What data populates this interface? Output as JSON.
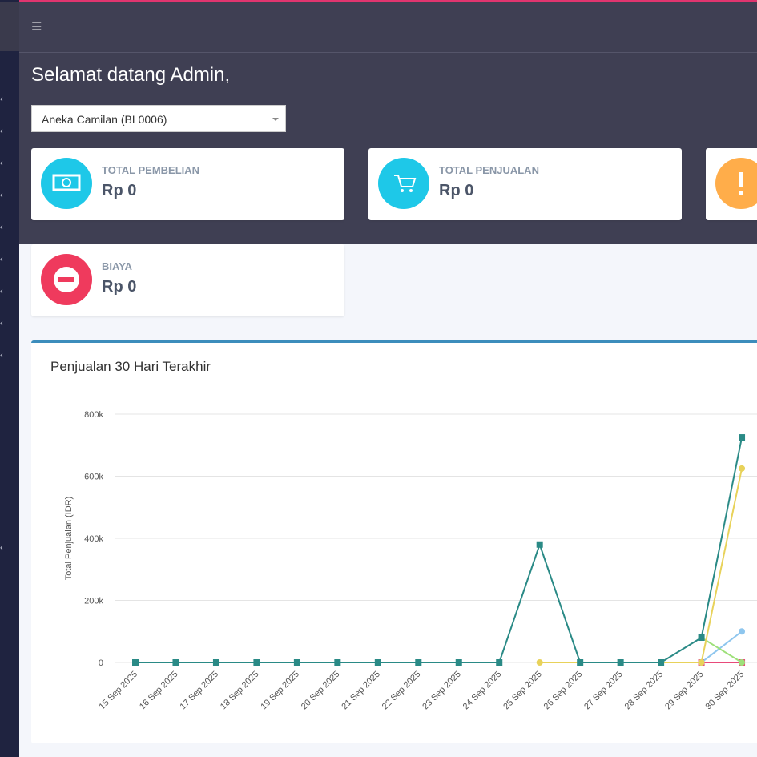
{
  "welcome": "Selamat datang Admin,",
  "store_select": "Aneka Camilan (BL0006)",
  "cards": [
    {
      "label": "TOTAL PEMBELIAN",
      "value": "Rp 0"
    },
    {
      "label": "TOTAL PENJUALAN",
      "value": "Rp 0"
    },
    {
      "label": "BIAYA",
      "value": "Rp 0"
    }
  ],
  "chart_data": {
    "type": "line",
    "title": "Penjualan 30 Hari Terakhir",
    "y_label": "Total Penjualan (IDR)",
    "categories": [
      "15 Sep 2025",
      "16 Sep 2025",
      "17 Sep 2025",
      "18 Sep 2025",
      "19 Sep 2025",
      "20 Sep 2025",
      "21 Sep 2025",
      "22 Sep 2025",
      "23 Sep 2025",
      "24 Sep 2025",
      "25 Sep 2025",
      "26 Sep 2025",
      "27 Sep 2025",
      "28 Sep 2025",
      "29 Sep 2025",
      "30 Sep 2025"
    ],
    "series": [
      {
        "color": "#e84a7a",
        "marker": "square",
        "values": [
          null,
          null,
          null,
          null,
          null,
          null,
          null,
          null,
          null,
          null,
          null,
          null,
          null,
          null,
          0,
          0
        ]
      },
      {
        "color": "#8ec6ee",
        "marker": "circle",
        "values": [
          null,
          null,
          null,
          null,
          null,
          null,
          null,
          null,
          null,
          null,
          null,
          null,
          null,
          null,
          0,
          100000
        ]
      },
      {
        "color": "#9ee07a",
        "marker": "circle",
        "values": [
          null,
          null,
          null,
          null,
          null,
          null,
          null,
          null,
          null,
          null,
          null,
          null,
          null,
          null,
          80000,
          0
        ]
      },
      {
        "color": "#e8d25a",
        "marker": "circle",
        "values": [
          null,
          null,
          null,
          null,
          null,
          null,
          null,
          null,
          null,
          null,
          0,
          0,
          0,
          0,
          0,
          625000
        ]
      },
      {
        "color": "#2a8a86",
        "marker": "square",
        "values": [
          0,
          0,
          0,
          0,
          0,
          0,
          0,
          0,
          0,
          0,
          380000,
          0,
          0,
          0,
          80000,
          725000
        ]
      }
    ],
    "ylim": [
      0,
      800000
    ],
    "yticks": [
      0,
      {
        "value": 200000,
        "label": "200k"
      },
      {
        "value": 400000,
        "label": "400k"
      },
      {
        "value": 600000,
        "label": "600k"
      },
      {
        "value": 800000,
        "label": "800k"
      }
    ],
    "grid": true
  }
}
